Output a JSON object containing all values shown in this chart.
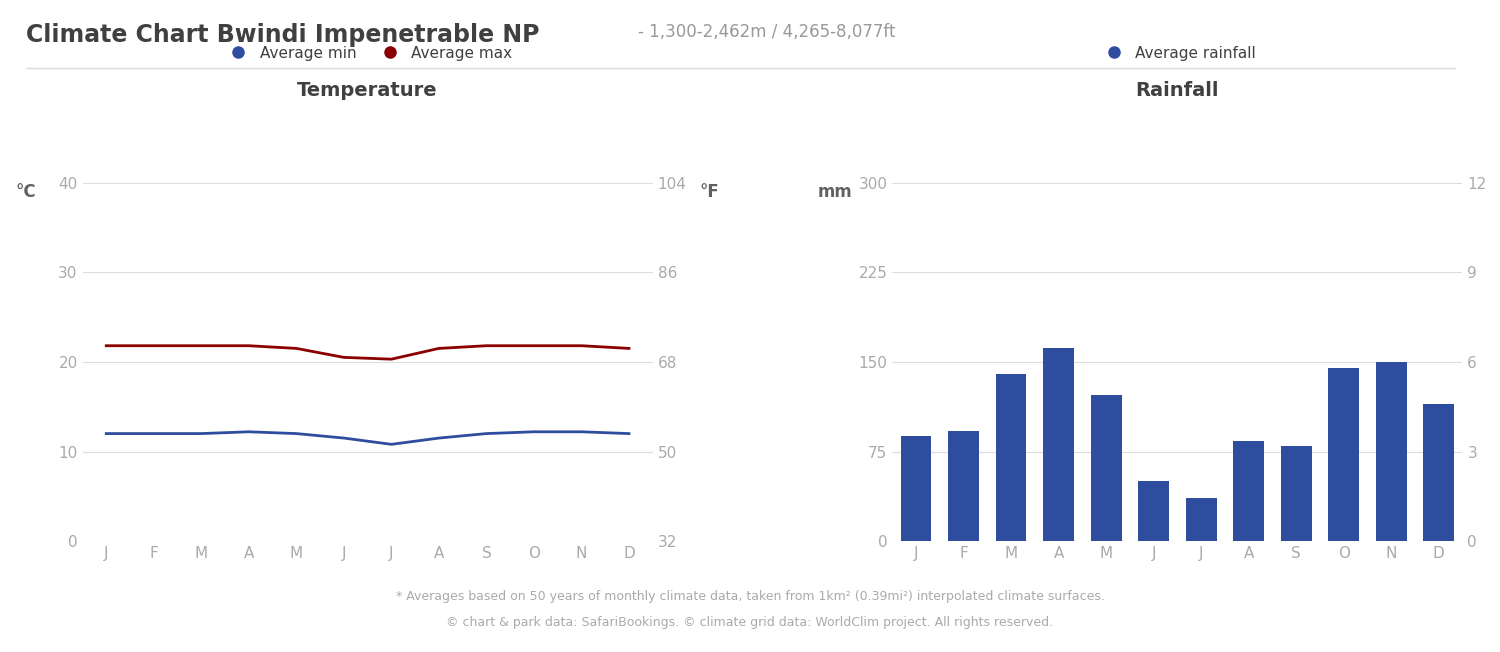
{
  "title_main": "Climate Chart Bwindi Impenetrable NP",
  "title_sub": "- 1,300-2,462m / 4,265-8,077ft",
  "months": [
    "J",
    "F",
    "M",
    "A",
    "M",
    "J",
    "J",
    "A",
    "S",
    "O",
    "N",
    "D"
  ],
  "temp_min": [
    12.0,
    12.0,
    12.0,
    12.2,
    12.0,
    11.5,
    10.8,
    11.5,
    12.0,
    12.2,
    12.2,
    12.0
  ],
  "temp_max": [
    21.8,
    21.8,
    21.8,
    21.8,
    21.5,
    20.5,
    20.3,
    21.5,
    21.8,
    21.8,
    21.8,
    21.5
  ],
  "rainfall_12": [
    88,
    92,
    140,
    162,
    122,
    50,
    36,
    84,
    80,
    145,
    150,
    115
  ],
  "temp_ylim": [
    0,
    40
  ],
  "temp_yticks_c": [
    0,
    10,
    20,
    30,
    40
  ],
  "temp_yticks_f": [
    32,
    50,
    68,
    86,
    104
  ],
  "rain_ylim": [
    0,
    300
  ],
  "rain_yticks_mm": [
    0,
    75,
    150,
    225,
    300
  ],
  "rain_yticks_in": [
    0,
    3,
    6,
    9,
    12
  ],
  "temp_title": "Temperature",
  "rain_title": "Rainfall",
  "legend_min": "Average min",
  "legend_max": "Average max",
  "legend_rain": "Average rainfall",
  "color_min": "#2e4d9e",
  "color_max": "#8b0000",
  "color_bar": "#2e4d9e",
  "color_title_main": "#404040",
  "color_title_sub": "#999999",
  "color_axis_label": "#606060",
  "color_tick": "#aaaaaa",
  "color_grid": "#dddddd",
  "footer1": "* Averages based on 50 years of monthly climate data, taken from 1km² (0.39mi²) interpolated climate surfaces.",
  "footer2": "© chart & park data: SafariBookings. © climate grid data: WorldClim project. All rights reserved.",
  "background_color": "#ffffff"
}
